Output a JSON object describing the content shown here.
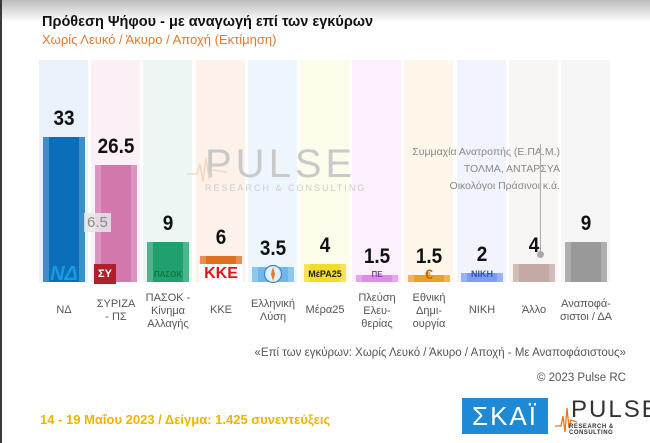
{
  "header": {
    "title": "Πρόθεση Ψήφου - με αναγωγή επί των εγκύρων",
    "subtitle": "Χωρίς Λευκό / Άκυρο / Αποχή  (Εκτίμηση)"
  },
  "chart_data": {
    "type": "bar",
    "title": "Πρόθεση Ψήφου - με αναγωγή επί των εγκύρων",
    "subtitle": "Χωρίς Λευκό / Άκυρο / Αποχή  (Εκτίμηση)",
    "categories": [
      "ΝΔ",
      "ΣΥΡΙΖΑ - ΠΣ",
      "ΠΑΣΟΚ - Κίνημα Αλλαγής",
      "ΚΚΕ",
      "Ελληνική Λύση",
      "Μέρα25",
      "Πλεύση Ελευθερίας",
      "Εθνική Δημιουργία",
      "ΝΙΚΗ",
      "Άλλο",
      "Αναποφάσιστοι / ΔΑ"
    ],
    "values": [
      33,
      26.5,
      9,
      6,
      3.5,
      4,
      1.5,
      1.5,
      2,
      4,
      9
    ],
    "value_labels": [
      "33",
      "26.5",
      "9",
      "6",
      "3.5",
      "4",
      "1.5",
      "1.5",
      "2",
      "4",
      "9"
    ],
    "colors": [
      "#0a6fb8",
      "#d278ad",
      "#1fa06e",
      "#e0701d",
      "#6fb7ec",
      "#f2dc2a",
      "#e08ae8",
      "#e8a12a",
      "#7d9cf2",
      "#c4aaa4",
      "#999999"
    ],
    "annotations": [
      {
        "text": "6.5",
        "description": "difference ΝΔ vs ΣΥΡΙΖΑ"
      },
      {
        "text": "Συμμαχία Ανατροπής (Ε.ΠΑ.Μ.) / ΤΟΛΜΑ, ΑΝΤΑΡΣΥΑ / Οικολόγοι Πράσινοι  κ.ά.",
        "target": "Άλλο"
      }
    ],
    "xlabel": "",
    "ylabel": "",
    "ylim": [
      0,
      50
    ],
    "grid": false,
    "legend": "none"
  },
  "bars": [
    {
      "label": "ΝΔ",
      "value": "33",
      "logo": "ΝΔ",
      "color": "#0a6fb8",
      "bg": "#e9f2fa"
    },
    {
      "label": "ΣΥΡΙΖΑ - ΠΣ",
      "value": "26.5",
      "logo": "ΣΥ",
      "color": "#d278ad",
      "bg": "#faf0f5"
    },
    {
      "label": "ΠΑΣΟΚ - Κίνημα Αλλαγής",
      "value": "9",
      "logo": "ΠΑΣΟΚ",
      "color": "#1fa06e",
      "bg": "#ecf7f3"
    },
    {
      "label": "ΚΚΕ",
      "value": "6",
      "logo": "ΚΚΕ",
      "color": "#e0701d",
      "bg": "#fdf1ea"
    },
    {
      "label": "Ελληνική Λύση",
      "value": "3.5",
      "logo": "compass",
      "color": "#6fb7ec",
      "bg": "#eef6fd"
    },
    {
      "label": "Μέρα25",
      "value": "4",
      "logo": "ΜέΡΑ25",
      "color": "#f2dc2a",
      "bg": "#fdfbe9"
    },
    {
      "label": "Πλεύση Ελευθερίας",
      "value": "1.5",
      "logo": "ΠΕ",
      "color": "#e08ae8",
      "bg": "#fcf0fd"
    },
    {
      "label": "Εθνική Δημιουργία",
      "value": "1.5",
      "logo": "€",
      "color": "#e8a12a",
      "bg": "#fdf7ea"
    },
    {
      "label": "ΝΙΚΗ",
      "value": "2",
      "logo": "ΝΙΚΗ",
      "color": "#7d9cf2",
      "bg": "#f1f4fd"
    },
    {
      "label": "Άλλο",
      "value": "4",
      "logo": "",
      "color": "#c4aaa4",
      "bg": "#f8f5f5"
    },
    {
      "label": "Αναποφάσιστοι / ΔΑ",
      "value": "9",
      "logo": "",
      "color": "#999999",
      "bg": "#f6f6f6"
    }
  ],
  "labels_display": [
    [
      "ΝΔ"
    ],
    [
      "ΣΥΡΙΖΑ",
      "- ΠΣ"
    ],
    [
      "ΠΑΣΟΚ -",
      "Κίνημα",
      "Αλλαγής"
    ],
    [
      "ΚΚΕ"
    ],
    [
      "Ελληνική",
      "Λύση"
    ],
    [
      "Μέρα25"
    ],
    [
      "Πλεύση",
      "Ελευ-",
      "θερίας"
    ],
    [
      "Εθνική",
      "Δημι-",
      "ουργία"
    ],
    [
      "ΝΙΚΗ"
    ],
    [
      "Άλλο"
    ],
    [
      "Αναποφά-",
      "σιστοι / ΔΑ"
    ]
  ],
  "difference_badge": "6.5",
  "other_note": {
    "line1": "Συμμαχία Ανατροπής (Ε.ΠΑ.Μ.)",
    "line2": "ΤΟΛΜΑ, ΑΝΤΑΡΣΥΑ",
    "line3": "Οικολόγοι Πράσινοι   κ.ά."
  },
  "watermark": {
    "big": "PULSE",
    "small": "RESEARCH & CONSULTING"
  },
  "footer": {
    "note": "«Επί των εγκύρων:  Χωρίς Λευκό / Άκυρο / Αποχή - Με Αναποφάσιστους»",
    "copyright": "© 2023 Pulse RC",
    "dateline": "14 - 19  Μαΐου  2023  /  Δείγμα:  1.425 συνεντεύξεις",
    "skai_logo": "ΣΚΑΪ",
    "pulse_logo": "PULSE",
    "pulse_sub": "RESEARCH & CONSULTING"
  }
}
